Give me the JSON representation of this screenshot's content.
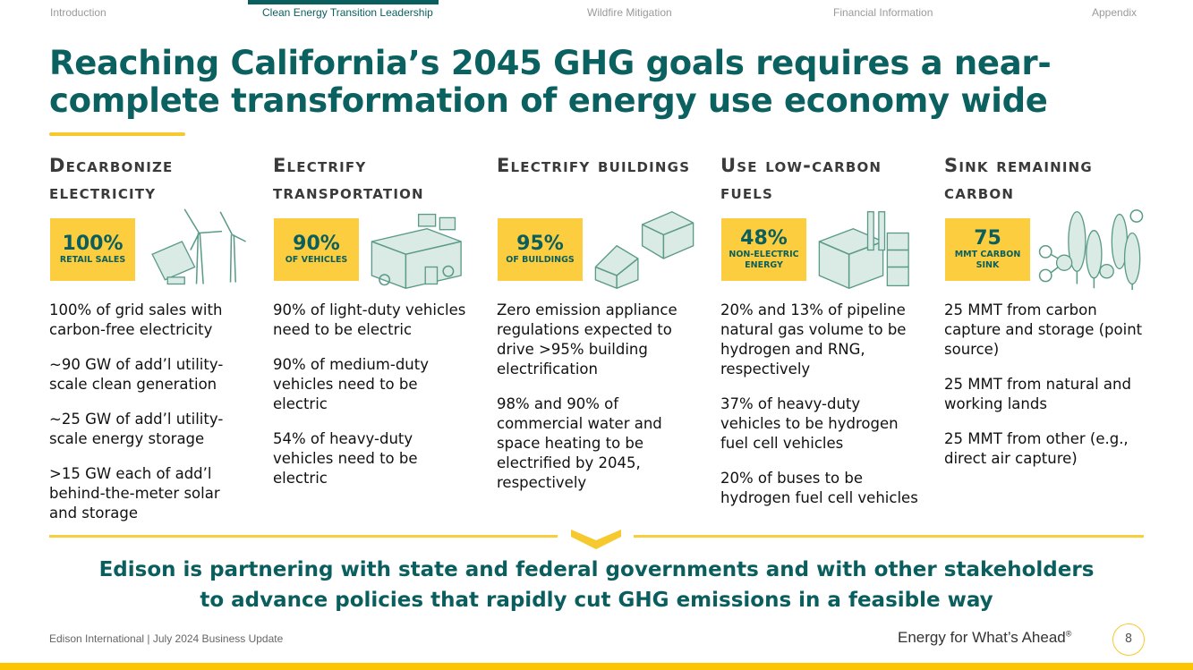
{
  "nav": {
    "items": [
      "Introduction",
      "Clean Energy Transition Leadership",
      "Wildfire Mitigation",
      "Financial Information",
      "Appendix"
    ],
    "active": 1
  },
  "title": "Reaching California’s 2045 GHG goals requires a near-complete transformation of energy use economy wide",
  "columns": [
    {
      "heading": "Decarbonize electricity",
      "stat": "100%",
      "stat_label": "RETAIL SALES",
      "icon": "wind-solar-icon",
      "bullets": [
        "100% of grid sales with carbon-free electricity",
        "~90 GW of add’l utility-scale clean generation",
        "~25 GW of add’l utility-scale energy storage",
        ">15 GW each of add’l behind-the-meter solar and storage"
      ]
    },
    {
      "heading": "Electrify transportation",
      "stat": "90%",
      "stat_label": "OF VEHICLES",
      "icon": "electric-bus-icon",
      "bullets": [
        "90% of light-duty vehicles need to be electric",
        "90% of medium-duty vehicles need to be electric",
        "54% of heavy-duty vehicles need to be electric"
      ]
    },
    {
      "heading": "Electrify buildings",
      "stat": "95%",
      "stat_label": "OF BUILDINGS",
      "icon": "buildings-icon",
      "bullets": [
        "Zero emission appliance regulations expected to drive >95% building electrification",
        "98% and 90% of commercial water and space heating to be electrified by 2045, respectively"
      ]
    },
    {
      "heading": "Use low-carbon fuels",
      "stat": "48%",
      "stat_label": "NON-ELECTRIC ENERGY",
      "icon": "factory-icon",
      "bullets": [
        "20% and 13% of pipeline natural gas volume to be hydrogen and RNG, respectively",
        "37% of heavy-duty vehicles to be hydrogen fuel cell vehicles",
        "20% of buses to be hydrogen fuel cell vehicles"
      ]
    },
    {
      "heading": "Sink remaining carbon",
      "stat": "75",
      "stat_label": "MMT CARBON SINK",
      "icon": "trees-co2-icon",
      "bullets": [
        "25 MMT from carbon capture and storage (point source)",
        "25 MMT from natural and working lands",
        "25 MMT from other (e.g., direct air capture)"
      ]
    }
  ],
  "tagline": [
    "Edison is partnering with state and federal governments and with other stakeholders",
    "to advance policies that rapidly cut GHG emissions in a feasible way"
  ],
  "footer": {
    "left": "Edison International | July 2024 Business Update",
    "slogan": "Energy for What’s Ahead",
    "reg": "®",
    "page": "8"
  },
  "colors": {
    "teal": "#0b5e5e",
    "yellow": "#fcce3f"
  }
}
